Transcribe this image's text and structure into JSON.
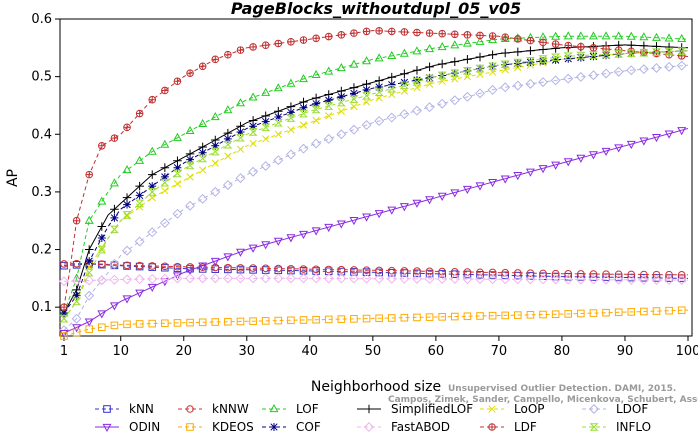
{
  "chart_data": {
    "type": "line",
    "title": "PageBlocks_withoutdupl_05_v05",
    "xlabel": "Neighborhood size",
    "ylabel": "AP",
    "xlim": [
      1,
      100
    ],
    "ylim": [
      0.05,
      0.6
    ],
    "xticks": [
      1,
      10,
      20,
      30,
      40,
      50,
      60,
      70,
      80,
      90,
      100
    ],
    "yticks": [
      0.1,
      0.2,
      0.3,
      0.4,
      0.5,
      0.6
    ],
    "grid": false,
    "legend_position": "bottom",
    "watermark": [
      "Unsupervised Outlier Detection. DAMI, 2015.",
      "Campos, Zimek, Sander, Campello, Micenkova, Schubert, Assent, Houle"
    ],
    "series": [
      {
        "name": "kNN",
        "color": "#3333cc",
        "marker": "square",
        "dash": "4,3",
        "points": [
          [
            1,
            0.172
          ],
          [
            5,
            0.175
          ],
          [
            10,
            0.172
          ],
          [
            20,
            0.167
          ],
          [
            40,
            0.163
          ],
          [
            60,
            0.158
          ],
          [
            80,
            0.153
          ],
          [
            100,
            0.15
          ]
        ]
      },
      {
        "name": "kNNW",
        "color": "#cc3333",
        "marker": "circle",
        "dash": "4,3",
        "points": [
          [
            1,
            0.175
          ],
          [
            5,
            0.176
          ],
          [
            10,
            0.173
          ],
          [
            20,
            0.17
          ],
          [
            40,
            0.166
          ],
          [
            60,
            0.162
          ],
          [
            80,
            0.158
          ],
          [
            100,
            0.156
          ]
        ]
      },
      {
        "name": "LOF",
        "color": "#22cc22",
        "marker": "triangle-up",
        "dash": "4,3",
        "points": [
          [
            1,
            0.09
          ],
          [
            3,
            0.15
          ],
          [
            5,
            0.25
          ],
          [
            8,
            0.3
          ],
          [
            10,
            0.33
          ],
          [
            15,
            0.37
          ],
          [
            20,
            0.4
          ],
          [
            25,
            0.43
          ],
          [
            30,
            0.46
          ],
          [
            40,
            0.5
          ],
          [
            50,
            0.53
          ],
          [
            60,
            0.55
          ],
          [
            70,
            0.565
          ],
          [
            80,
            0.57
          ],
          [
            90,
            0.57
          ],
          [
            100,
            0.565
          ]
        ]
      },
      {
        "name": "SimplifiedLOF",
        "color": "#000000",
        "marker": "plus",
        "dash": "",
        "points": [
          [
            1,
            0.09
          ],
          [
            3,
            0.13
          ],
          [
            5,
            0.2
          ],
          [
            8,
            0.26
          ],
          [
            10,
            0.28
          ],
          [
            15,
            0.33
          ],
          [
            20,
            0.36
          ],
          [
            25,
            0.39
          ],
          [
            30,
            0.42
          ],
          [
            40,
            0.46
          ],
          [
            50,
            0.49
          ],
          [
            60,
            0.52
          ],
          [
            70,
            0.54
          ],
          [
            80,
            0.55
          ],
          [
            90,
            0.555
          ],
          [
            100,
            0.55
          ]
        ]
      },
      {
        "name": "LoOP",
        "color": "#dddd00",
        "marker": "x",
        "dash": "4,3",
        "points": [
          [
            1,
            0.08
          ],
          [
            3,
            0.11
          ],
          [
            5,
            0.17
          ],
          [
            8,
            0.22
          ],
          [
            10,
            0.25
          ],
          [
            15,
            0.29
          ],
          [
            20,
            0.32
          ],
          [
            25,
            0.35
          ],
          [
            30,
            0.38
          ],
          [
            40,
            0.42
          ],
          [
            50,
            0.46
          ],
          [
            60,
            0.49
          ],
          [
            70,
            0.51
          ],
          [
            80,
            0.53
          ],
          [
            90,
            0.54
          ],
          [
            100,
            0.545
          ]
        ]
      },
      {
        "name": "LDOF",
        "color": "#b4b4e6",
        "marker": "diamond",
        "dash": "4,3",
        "points": [
          [
            1,
            0.06
          ],
          [
            3,
            0.08
          ],
          [
            5,
            0.12
          ],
          [
            8,
            0.16
          ],
          [
            10,
            0.19
          ],
          [
            15,
            0.23
          ],
          [
            20,
            0.27
          ],
          [
            25,
            0.3
          ],
          [
            30,
            0.33
          ],
          [
            40,
            0.38
          ],
          [
            50,
            0.42
          ],
          [
            60,
            0.45
          ],
          [
            70,
            0.48
          ],
          [
            80,
            0.495
          ],
          [
            90,
            0.51
          ],
          [
            100,
            0.52
          ]
        ]
      },
      {
        "name": "ODIN",
        "color": "#8a2be2",
        "marker": "triangle-down",
        "dash": "",
        "points": [
          [
            1,
            0.055
          ],
          [
            5,
            0.075
          ],
          [
            10,
            0.11
          ],
          [
            20,
            0.16
          ],
          [
            30,
            0.2
          ],
          [
            40,
            0.23
          ],
          [
            50,
            0.26
          ],
          [
            60,
            0.29
          ],
          [
            70,
            0.32
          ],
          [
            80,
            0.35
          ],
          [
            90,
            0.38
          ],
          [
            100,
            0.41
          ]
        ]
      },
      {
        "name": "KDEOS",
        "color": "#ffaa00",
        "marker": "square",
        "dash": "4,3",
        "points": [
          [
            1,
            0.05
          ],
          [
            5,
            0.062
          ],
          [
            10,
            0.07
          ],
          [
            20,
            0.073
          ],
          [
            40,
            0.078
          ],
          [
            60,
            0.083
          ],
          [
            80,
            0.088
          ],
          [
            100,
            0.095
          ]
        ]
      },
      {
        "name": "COF",
        "color": "#000080",
        "marker": "asterisk",
        "dash": "4,3",
        "points": [
          [
            1,
            0.09
          ],
          [
            3,
            0.12
          ],
          [
            5,
            0.18
          ],
          [
            8,
            0.24
          ],
          [
            10,
            0.27
          ],
          [
            15,
            0.31
          ],
          [
            20,
            0.35
          ],
          [
            25,
            0.38
          ],
          [
            30,
            0.41
          ],
          [
            40,
            0.45
          ],
          [
            50,
            0.48
          ],
          [
            60,
            0.5
          ],
          [
            70,
            0.52
          ],
          [
            80,
            0.53
          ],
          [
            90,
            0.54
          ],
          [
            100,
            0.545
          ]
        ]
      },
      {
        "name": "FastABOD",
        "color": "#f0b4f0",
        "marker": "diamond",
        "dash": "4,3",
        "points": [
          [
            1,
            0.145
          ],
          [
            10,
            0.148
          ],
          [
            20,
            0.15
          ],
          [
            40,
            0.15
          ],
          [
            60,
            0.149
          ],
          [
            80,
            0.148
          ],
          [
            100,
            0.147
          ]
        ]
      },
      {
        "name": "LDF",
        "color": "#c03030",
        "marker": "circle-plus",
        "dash": "4,3",
        "points": [
          [
            1,
            0.1
          ],
          [
            2,
            0.17
          ],
          [
            3,
            0.25
          ],
          [
            5,
            0.33
          ],
          [
            7,
            0.38
          ],
          [
            10,
            0.4
          ],
          [
            15,
            0.46
          ],
          [
            20,
            0.5
          ],
          [
            25,
            0.53
          ],
          [
            30,
            0.55
          ],
          [
            40,
            0.565
          ],
          [
            50,
            0.58
          ],
          [
            60,
            0.575
          ],
          [
            70,
            0.57
          ],
          [
            80,
            0.555
          ],
          [
            90,
            0.545
          ],
          [
            100,
            0.535
          ]
        ]
      },
      {
        "name": "INFLO",
        "color": "#99dd33",
        "marker": "hourglass",
        "dash": "4,3",
        "points": [
          [
            1,
            0.08
          ],
          [
            3,
            0.11
          ],
          [
            5,
            0.16
          ],
          [
            8,
            0.22
          ],
          [
            10,
            0.25
          ],
          [
            15,
            0.3
          ],
          [
            20,
            0.34
          ],
          [
            25,
            0.37
          ],
          [
            30,
            0.4
          ],
          [
            40,
            0.44
          ],
          [
            50,
            0.47
          ],
          [
            60,
            0.5
          ],
          [
            70,
            0.52
          ],
          [
            80,
            0.535
          ],
          [
            90,
            0.54
          ],
          [
            100,
            0.545
          ]
        ]
      }
    ],
    "legend_rows": [
      [
        "kNN",
        "kNNW",
        "LOF",
        "SimplifiedLOF",
        "LoOP",
        "LDOF"
      ],
      [
        "ODIN",
        "KDEOS",
        "COF",
        "FastABOD",
        "LDF",
        "INFLO"
      ]
    ]
  }
}
